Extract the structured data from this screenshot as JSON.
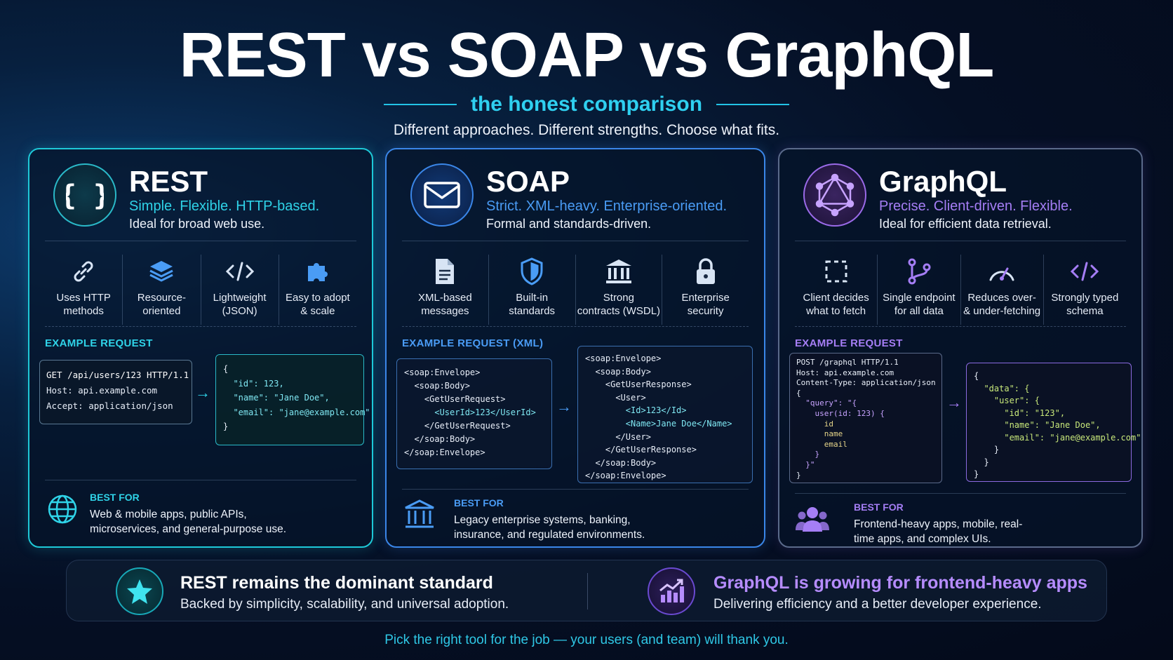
{
  "header": {
    "title": "REST vs SOAP vs GraphQL",
    "subtitle": "the honest comparison",
    "tagline": "Different approaches. Different strengths. Choose what fits."
  },
  "colors": {
    "rest_accent": "#1ec9d8",
    "soap_accent": "#3a86e8",
    "graphql_accent": "#a57ef5",
    "background": "#050f24"
  },
  "rest": {
    "icon": "curly-braces-icon",
    "name": "REST",
    "slogan": "Simple. Flexible. HTTP-based.",
    "description": "Ideal for broad web use.",
    "features": [
      {
        "icon": "link-icon",
        "line1": "Uses HTTP",
        "line2": "methods"
      },
      {
        "icon": "layers-icon",
        "line1": "Resource-",
        "line2": "oriented"
      },
      {
        "icon": "code-icon",
        "line1": "Lightweight",
        "line2": "(JSON)"
      },
      {
        "icon": "puzzle-icon",
        "line1": "Easy to adopt",
        "line2": "& scale"
      }
    ],
    "example_label": "EXAMPLE REQUEST",
    "request": [
      "GET /api/users/123 HTTP/1.1",
      "Host: api.example.com",
      "Accept: application/json"
    ],
    "response": [
      "{",
      "  \"id\": 123,",
      "  \"name\": \"Jane Doe\",",
      "  \"email\": \"jane@example.com\"",
      "}"
    ],
    "best_icon": "globe-icon",
    "best_label": "BEST FOR",
    "best_for": "Web & mobile apps, public APIs, microservices, and general-purpose use."
  },
  "soap": {
    "icon": "envelope-icon",
    "name": "SOAP",
    "slogan": "Strict. XML-heavy. Enterprise-oriented.",
    "description": "Formal and standards-driven.",
    "features": [
      {
        "icon": "document-icon",
        "line1": "XML-based",
        "line2": "messages"
      },
      {
        "icon": "shield-icon",
        "line1": "Built-in",
        "line2": "standards"
      },
      {
        "icon": "bank-icon",
        "line1": "Strong",
        "line2": "contracts (WSDL)"
      },
      {
        "icon": "lock-icon",
        "line1": "Enterprise",
        "line2": "security"
      }
    ],
    "example_label": "EXAMPLE REQUEST (XML)",
    "request": [
      "<soap:Envelope>",
      "  <soap:Body>",
      "    <GetUserRequest>",
      "      <UserId>123</UserId>",
      "    </GetUserRequest>",
      "  </soap:Body>",
      "</soap:Envelope>"
    ],
    "response": [
      "<soap:Envelope>",
      "  <soap:Body>",
      "    <GetUserResponse>",
      "      <User>",
      "        <Id>123</Id>",
      "        <Name>Jane Doe</Name>",
      "      </User>",
      "    </GetUserResponse>",
      "  </soap:Body>",
      "</soap:Envelope>"
    ],
    "best_icon": "institution-icon",
    "best_label": "BEST FOR",
    "best_for": "Legacy enterprise systems, banking, insurance, and regulated environments."
  },
  "graphql": {
    "icon": "graphql-logo-icon",
    "name": "GraphQL",
    "slogan": "Precise. Client-driven. Flexible.",
    "description": "Ideal for efficient data retrieval.",
    "features": [
      {
        "icon": "selection-icon",
        "line1": "Client decides",
        "line2": "what to fetch"
      },
      {
        "icon": "branch-icon",
        "line1": "Single endpoint",
        "line2": "for all data"
      },
      {
        "icon": "gauge-icon",
        "line1": "Reduces over-",
        "line2": "& under-fetching"
      },
      {
        "icon": "code-icon",
        "line1": "Strongly typed",
        "line2": "schema"
      }
    ],
    "example_label": "EXAMPLE REQUEST",
    "request": [
      "POST /graphql HTTP/1.1",
      "Host: api.example.com",
      "Content-Type: application/json",
      "{",
      "  \"query\": \"{",
      "    user(id: 123) {",
      "      id",
      "      name",
      "      email",
      "    }",
      "  }\"",
      "}"
    ],
    "response": [
      "{",
      "  \"data\": {",
      "    \"user\": {",
      "      \"id\": \"123\",",
      "      \"name\": \"Jane Doe\",",
      "      \"email\": \"jane@example.com\"",
      "    }",
      "  }",
      "}"
    ],
    "best_icon": "users-icon",
    "best_label": "BEST FOR",
    "best_for": "Frontend-heavy apps, mobile, real-time apps, and complex UIs."
  },
  "banner": {
    "left_icon": "star-icon",
    "left_title": "REST remains the dominant standard",
    "left_sub": "Backed by simplicity, scalability, and universal adoption.",
    "right_icon": "growth-chart-icon",
    "right_title": "GraphQL is growing for frontend-heavy apps",
    "right_sub": "Delivering efficiency and a better developer experience."
  },
  "footer": "Pick the right tool for the job — your users (and team) will thank you."
}
